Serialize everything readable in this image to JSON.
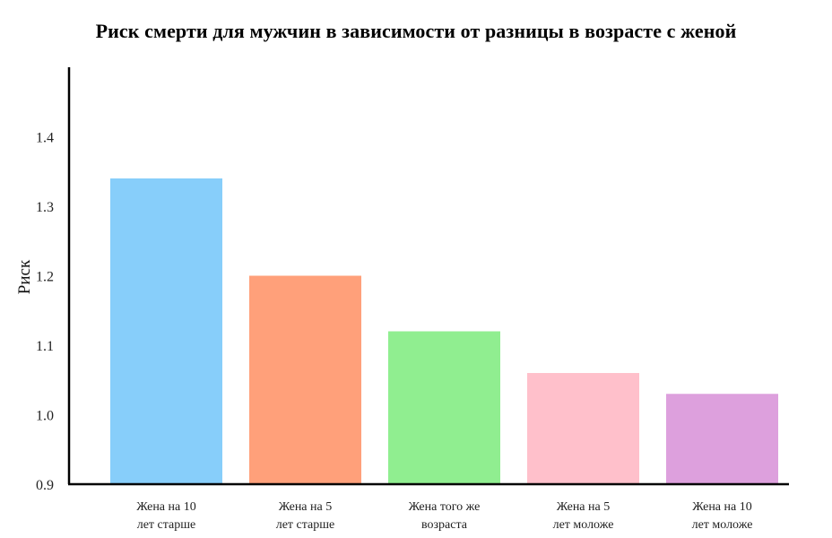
{
  "chart_data": {
    "type": "bar",
    "title": "Риск смерти для мужчин в зависимости от разницы в возрасте с женой",
    "xlabel": "",
    "ylabel": "Риск",
    "ylim": [
      0.9,
      1.5
    ],
    "yticks": [
      "0.9",
      "1.0",
      "1.1",
      "1.2",
      "1.3",
      "1.4"
    ],
    "grid": false,
    "categories": [
      [
        "Жена на 10",
        "лет старше"
      ],
      [
        "Жена на 5",
        "лет старше"
      ],
      [
        "Жена того же",
        "возраста"
      ],
      [
        "Жена на 5",
        "лет моложе"
      ],
      [
        "Жена на 10",
        "лет моложе"
      ]
    ],
    "values": [
      1.34,
      1.2,
      1.12,
      1.06,
      1.03
    ],
    "colors": [
      "#87cefa",
      "#ffa07a",
      "#90ee90",
      "#ffc0cb",
      "#dda0dd"
    ]
  }
}
